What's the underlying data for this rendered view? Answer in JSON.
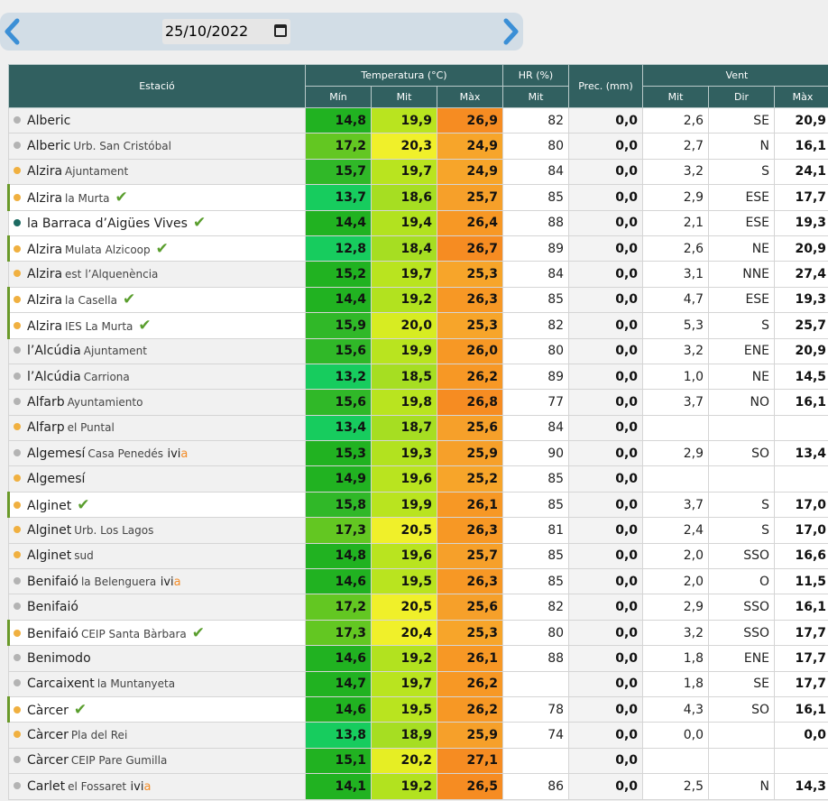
{
  "date": {
    "value": "25/10/2022"
  },
  "headers": {
    "station": "Estació",
    "temperature": "Temperatura (°C)",
    "hr": "HR (%)",
    "prec": "Prec. (mm)",
    "wind": "Vent",
    "t_min": "Mín",
    "t_mit": "Mit",
    "t_max": "Màx",
    "hr_mit": "Mit",
    "w_mit": "Mit",
    "w_dir": "Dir",
    "w_max": "Màx"
  },
  "colors": {
    "header_bg": "#316060",
    "dot_gray": "#b3b3b3",
    "dot_orange": "#f0b040",
    "dot_teal": "#1d6b62",
    "check": "#5a9e2e",
    "ivia_orange": "#f28c28"
  },
  "rows": [
    {
      "name": "Alberic",
      "sub": "",
      "dot": "gray",
      "bg": "gray",
      "sel": false,
      "check": false,
      "ivia": false,
      "tmin": "14,8",
      "tmit": "19,9",
      "tmax": "26,9",
      "cmin": "#21b221",
      "cmit": "#b9e41f",
      "cmax": "#f68c22",
      "hr": "82",
      "prec": "0,0",
      "wmit": "2,6",
      "wdir": "SE",
      "wmax": "20,9"
    },
    {
      "name": "Alberic",
      "sub": "Urb. San Cristóbal",
      "dot": "gray",
      "bg": "gray",
      "sel": false,
      "check": false,
      "ivia": false,
      "tmin": "17,2",
      "tmit": "20,3",
      "tmax": "24,9",
      "cmin": "#63c722",
      "cmit": "#f0f02a",
      "cmax": "#f7a52a",
      "hr": "80",
      "prec": "0,0",
      "wmit": "2,7",
      "wdir": "N",
      "wmax": "16,1"
    },
    {
      "name": "Alzira",
      "sub": "Ajuntament",
      "dot": "orange",
      "bg": "gray",
      "sel": false,
      "check": false,
      "ivia": false,
      "tmin": "15,7",
      "tmit": "19,7",
      "tmax": "24,9",
      "cmin": "#30b828",
      "cmit": "#b9e41f",
      "cmax": "#f7a52a",
      "hr": "84",
      "prec": "0,0",
      "wmit": "3,2",
      "wdir": "S",
      "wmax": "24,1"
    },
    {
      "name": "Alzira",
      "sub": "la Murta",
      "dot": "orange",
      "bg": "white",
      "sel": true,
      "check": true,
      "ivia": false,
      "tmin": "13,7",
      "tmit": "18,6",
      "tmax": "25,7",
      "cmin": "#17cc5e",
      "cmit": "#a6de22",
      "cmax": "#f6a02a",
      "hr": "85",
      "prec": "0,0",
      "wmit": "2,9",
      "wdir": "ESE",
      "wmax": "17,7"
    },
    {
      "name": "la Barraca d’Aigües Vives",
      "sub": "",
      "dot": "teal",
      "bg": "white",
      "sel": false,
      "check": true,
      "ivia": false,
      "tmin": "14,4",
      "tmit": "19,4",
      "tmax": "26,4",
      "cmin": "#21b221",
      "cmit": "#b2e21f",
      "cmax": "#f79825",
      "hr": "88",
      "prec": "0,0",
      "wmit": "2,1",
      "wdir": "ESE",
      "wmax": "19,3"
    },
    {
      "name": "Alzira",
      "sub": "Mulata Alzicoop",
      "dot": "orange",
      "bg": "white",
      "sel": true,
      "check": true,
      "ivia": false,
      "tmin": "12,8",
      "tmit": "18,4",
      "tmax": "26,7",
      "cmin": "#17cc5e",
      "cmit": "#a6de22",
      "cmax": "#f68c22",
      "hr": "89",
      "prec": "0,0",
      "wmit": "2,6",
      "wdir": "NE",
      "wmax": "20,9"
    },
    {
      "name": "Alzira",
      "sub": "est l’Alquenència",
      "dot": "orange",
      "bg": "gray",
      "sel": false,
      "check": false,
      "ivia": false,
      "tmin": "15,2",
      "tmit": "19,7",
      "tmax": "25,3",
      "cmin": "#21b221",
      "cmit": "#b9e41f",
      "cmax": "#f7a52a",
      "hr": "84",
      "prec": "0,0",
      "wmit": "3,1",
      "wdir": "NNE",
      "wmax": "27,4"
    },
    {
      "name": "Alzira",
      "sub": "la Casella",
      "dot": "orange",
      "bg": "white",
      "sel": true,
      "check": true,
      "ivia": false,
      "tmin": "14,4",
      "tmit": "19,2",
      "tmax": "26,3",
      "cmin": "#21b221",
      "cmit": "#b2e21f",
      "cmax": "#f79825",
      "hr": "85",
      "prec": "0,0",
      "wmit": "4,7",
      "wdir": "ESE",
      "wmax": "19,3"
    },
    {
      "name": "Alzira",
      "sub": "IES La Murta",
      "dot": "orange",
      "bg": "white",
      "sel": true,
      "check": true,
      "ivia": false,
      "tmin": "15,9",
      "tmit": "20,0",
      "tmax": "25,3",
      "cmin": "#30b828",
      "cmit": "#d7ec22",
      "cmax": "#f7a52a",
      "hr": "82",
      "prec": "0,0",
      "wmit": "5,3",
      "wdir": "S",
      "wmax": "25,7"
    },
    {
      "name": "l’Alcúdia",
      "sub": "Ajuntament",
      "dot": "gray",
      "bg": "gray",
      "sel": false,
      "check": false,
      "ivia": false,
      "tmin": "15,6",
      "tmit": "19,9",
      "tmax": "26,0",
      "cmin": "#30b828",
      "cmit": "#b9e41f",
      "cmax": "#f79825",
      "hr": "80",
      "prec": "0,0",
      "wmit": "3,2",
      "wdir": "ENE",
      "wmax": "20,9"
    },
    {
      "name": "l’Alcúdia",
      "sub": "Carriona",
      "dot": "gray",
      "bg": "gray",
      "sel": false,
      "check": false,
      "ivia": false,
      "tmin": "13,2",
      "tmit": "18,5",
      "tmax": "26,2",
      "cmin": "#17cc5e",
      "cmit": "#a6de22",
      "cmax": "#f79825",
      "hr": "89",
      "prec": "0,0",
      "wmit": "1,0",
      "wdir": "NE",
      "wmax": "14,5"
    },
    {
      "name": "Alfarb",
      "sub": "Ayuntamiento",
      "dot": "gray",
      "bg": "gray",
      "sel": false,
      "check": false,
      "ivia": false,
      "tmin": "15,6",
      "tmit": "19,8",
      "tmax": "26,8",
      "cmin": "#30b828",
      "cmit": "#b9e41f",
      "cmax": "#f68c22",
      "hr": "77",
      "prec": "0,0",
      "wmit": "3,7",
      "wdir": "NO",
      "wmax": "16,1"
    },
    {
      "name": "Alfarp",
      "sub": "el Puntal",
      "dot": "orange",
      "bg": "gray",
      "sel": false,
      "check": false,
      "ivia": false,
      "tmin": "13,4",
      "tmit": "18,7",
      "tmax": "25,6",
      "cmin": "#17cc5e",
      "cmit": "#a6de22",
      "cmax": "#f6a02a",
      "hr": "84",
      "prec": "0,0",
      "wmit": "",
      "wdir": "",
      "wmax": ""
    },
    {
      "name": "Algemesí",
      "sub": "Casa Penedés",
      "dot": "gray",
      "bg": "gray",
      "sel": false,
      "check": false,
      "ivia": true,
      "ivia_a": "ivi",
      "ivia_b": "a",
      "tmin": "15,3",
      "tmit": "19,3",
      "tmax": "25,9",
      "cmin": "#21b221",
      "cmit": "#b2e21f",
      "cmax": "#f6a02a",
      "hr": "90",
      "prec": "0,0",
      "wmit": "2,9",
      "wdir": "SO",
      "wmax": "13,4"
    },
    {
      "name": "Algemesí",
      "sub": "",
      "dot": "orange",
      "bg": "gray",
      "sel": false,
      "check": false,
      "ivia": false,
      "tmin": "14,9",
      "tmit": "19,6",
      "tmax": "25,2",
      "cmin": "#21b221",
      "cmit": "#b9e41f",
      "cmax": "#f7a52a",
      "hr": "85",
      "prec": "0,0",
      "wmit": "",
      "wdir": "",
      "wmax": ""
    },
    {
      "name": "Alginet",
      "sub": "",
      "dot": "orange",
      "bg": "white",
      "sel": true,
      "check": true,
      "ivia": false,
      "tmin": "15,8",
      "tmit": "19,9",
      "tmax": "26,1",
      "cmin": "#30b828",
      "cmit": "#b9e41f",
      "cmax": "#f79825",
      "hr": "85",
      "prec": "0,0",
      "wmit": "3,7",
      "wdir": "S",
      "wmax": "17,0"
    },
    {
      "name": "Alginet",
      "sub": "Urb. Los Lagos",
      "dot": "orange",
      "bg": "gray",
      "sel": false,
      "check": false,
      "ivia": false,
      "tmin": "17,3",
      "tmit": "20,5",
      "tmax": "26,3",
      "cmin": "#63c722",
      "cmit": "#f0f02a",
      "cmax": "#f79825",
      "hr": "81",
      "prec": "0,0",
      "wmit": "2,4",
      "wdir": "S",
      "wmax": "17,0"
    },
    {
      "name": "Alginet",
      "sub": "sud",
      "dot": "orange",
      "bg": "gray",
      "sel": false,
      "check": false,
      "ivia": false,
      "tmin": "14,8",
      "tmit": "19,6",
      "tmax": "25,7",
      "cmin": "#21b221",
      "cmit": "#b9e41f",
      "cmax": "#f6a02a",
      "hr": "85",
      "prec": "0,0",
      "wmit": "2,0",
      "wdir": "SSO",
      "wmax": "16,6"
    },
    {
      "name": "Benifaió",
      "sub": "la Belenguera",
      "dot": "gray",
      "bg": "gray",
      "sel": false,
      "check": false,
      "ivia": true,
      "ivia_a": "ivi",
      "ivia_b": "a",
      "tmin": "14,6",
      "tmit": "19,5",
      "tmax": "26,3",
      "cmin": "#21b221",
      "cmit": "#b9e41f",
      "cmax": "#f79825",
      "hr": "85",
      "prec": "0,0",
      "wmit": "2,0",
      "wdir": "O",
      "wmax": "11,5"
    },
    {
      "name": "Benifaió",
      "sub": "",
      "dot": "gray",
      "bg": "gray",
      "sel": false,
      "check": false,
      "ivia": false,
      "tmin": "17,2",
      "tmit": "20,5",
      "tmax": "25,6",
      "cmin": "#63c722",
      "cmit": "#f0f02a",
      "cmax": "#f6a02a",
      "hr": "82",
      "prec": "0,0",
      "wmit": "2,9",
      "wdir": "SSO",
      "wmax": "16,1"
    },
    {
      "name": "Benifaió",
      "sub": "CEIP Santa Bàrbara",
      "dot": "orange",
      "bg": "white",
      "sel": true,
      "check": true,
      "ivia": false,
      "tmin": "17,3",
      "tmit": "20,4",
      "tmax": "25,3",
      "cmin": "#63c722",
      "cmit": "#f0f02a",
      "cmax": "#f7a52a",
      "hr": "80",
      "prec": "0,0",
      "wmit": "3,2",
      "wdir": "SSO",
      "wmax": "17,7"
    },
    {
      "name": "Benimodo",
      "sub": "",
      "dot": "gray",
      "bg": "gray",
      "sel": false,
      "check": false,
      "ivia": false,
      "tmin": "14,6",
      "tmit": "19,2",
      "tmax": "26,1",
      "cmin": "#21b221",
      "cmit": "#b2e21f",
      "cmax": "#f79825",
      "hr": "88",
      "prec": "0,0",
      "wmit": "1,8",
      "wdir": "ENE",
      "wmax": "17,7"
    },
    {
      "name": "Carcaixent",
      "sub": "la Muntanyeta",
      "dot": "gray",
      "bg": "gray",
      "sel": false,
      "check": false,
      "ivia": false,
      "tmin": "14,7",
      "tmit": "19,7",
      "tmax": "26,2",
      "cmin": "#21b221",
      "cmit": "#b9e41f",
      "cmax": "#f79825",
      "hr": "",
      "prec": "0,0",
      "wmit": "1,8",
      "wdir": "SE",
      "wmax": "17,7"
    },
    {
      "name": "Càrcer",
      "sub": "",
      "dot": "orange",
      "bg": "white",
      "sel": true,
      "check": true,
      "ivia": false,
      "tmin": "14,6",
      "tmit": "19,5",
      "tmax": "26,2",
      "cmin": "#21b221",
      "cmit": "#b9e41f",
      "cmax": "#f79825",
      "hr": "78",
      "prec": "0,0",
      "wmit": "4,3",
      "wdir": "SO",
      "wmax": "16,1"
    },
    {
      "name": "Càrcer",
      "sub": "Pla del Rei",
      "dot": "orange",
      "bg": "gray",
      "sel": false,
      "check": false,
      "ivia": false,
      "tmin": "13,8",
      "tmit": "18,9",
      "tmax": "25,9",
      "cmin": "#17cc5e",
      "cmit": "#a6de22",
      "cmax": "#f6a02a",
      "hr": "74",
      "prec": "0,0",
      "wmit": "0,0",
      "wdir": "",
      "wmax": "0,0"
    },
    {
      "name": "Càrcer",
      "sub": "CEIP Pare Gumilla",
      "dot": "gray",
      "bg": "gray",
      "sel": false,
      "check": false,
      "ivia": false,
      "tmin": "15,1",
      "tmit": "20,2",
      "tmax": "27,1",
      "cmin": "#21b221",
      "cmit": "#e6ee24",
      "cmax": "#f68c22",
      "hr": "",
      "prec": "0,0",
      "wmit": "",
      "wdir": "",
      "wmax": ""
    },
    {
      "name": "Carlet",
      "sub": "el Fossaret",
      "dot": "gray",
      "bg": "gray",
      "sel": false,
      "check": false,
      "ivia": true,
      "ivia_a": "ivi",
      "ivia_b": "a",
      "tmin": "14,1",
      "tmit": "19,2",
      "tmax": "26,5",
      "cmin": "#21b221",
      "cmit": "#b2e21f",
      "cmax": "#f68c22",
      "hr": "86",
      "prec": "0,0",
      "wmit": "2,5",
      "wdir": "N",
      "wmax": "14,3"
    }
  ]
}
